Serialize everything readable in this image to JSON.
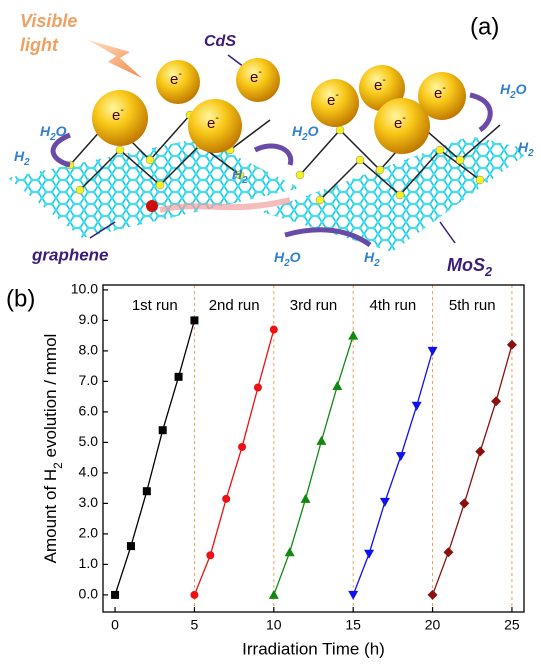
{
  "panel_a": {
    "label": "(a)",
    "visible_light": [
      "Visible",
      "light"
    ],
    "cds": "CdS",
    "electron": [
      "e",
      "-"
    ],
    "graphene": "graphene",
    "mos2": [
      "MoS",
      "2"
    ],
    "h2o": [
      "H",
      "2",
      "O"
    ],
    "h2": [
      "H",
      "2"
    ]
  },
  "chart_data": {
    "type": "line",
    "panel_label": "(b)",
    "xlabel": "Irradiation Time (h)",
    "ylabel": [
      "Amount of H",
      "2",
      " evolution / mmol"
    ],
    "xlim": [
      -0.76,
      25.76
    ],
    "ylim": [
      -0.56,
      10.16
    ],
    "xticks": [
      0,
      5,
      10,
      15,
      20,
      25
    ],
    "yticks": [
      {
        "value": 0,
        "label": "0.0"
      },
      {
        "value": 1,
        "label": "1.0"
      },
      {
        "value": 2,
        "label": "2.0"
      },
      {
        "value": 3,
        "label": "3.0"
      },
      {
        "value": 4,
        "label": "4.0"
      },
      {
        "value": 5,
        "label": "5.0"
      },
      {
        "value": 6,
        "label": "6.0"
      },
      {
        "value": 7,
        "label": "7.0"
      },
      {
        "value": 8,
        "label": "8.0"
      },
      {
        "value": 9,
        "label": "9.0"
      },
      {
        "value": 10,
        "label": "10.0"
      }
    ],
    "run_boundaries": [
      5,
      10,
      15,
      20,
      25
    ],
    "boundary_color": "#f0a050",
    "series": [
      {
        "name": "1st run",
        "color": "#000000",
        "marker": "square",
        "x": [
          0,
          1,
          2,
          3,
          4,
          5
        ],
        "values": [
          0,
          1.6,
          3.4,
          5.4,
          7.15,
          9.0
        ]
      },
      {
        "name": "2nd run",
        "color": "#ee1111",
        "marker": "circle",
        "x": [
          5,
          6,
          7,
          8,
          9,
          10
        ],
        "values": [
          0,
          1.3,
          3.15,
          4.85,
          6.8,
          8.7
        ]
      },
      {
        "name": "3rd run",
        "color": "#118811",
        "marker": "triangle-up",
        "x": [
          10,
          11,
          12,
          13,
          14,
          15
        ],
        "values": [
          0,
          1.4,
          3.15,
          5.05,
          6.85,
          8.5
        ]
      },
      {
        "name": "4th run",
        "color": "#1111ee",
        "marker": "triangle-down",
        "x": [
          15,
          16,
          17,
          18,
          19,
          20
        ],
        "values": [
          0,
          1.35,
          3.05,
          4.55,
          6.2,
          8.0
        ]
      },
      {
        "name": "5th run",
        "color": "#8b1010",
        "marker": "diamond",
        "x": [
          20,
          21,
          22,
          23,
          24,
          25
        ],
        "values": [
          0,
          1.4,
          3.0,
          4.7,
          6.35,
          8.2
        ]
      }
    ]
  }
}
